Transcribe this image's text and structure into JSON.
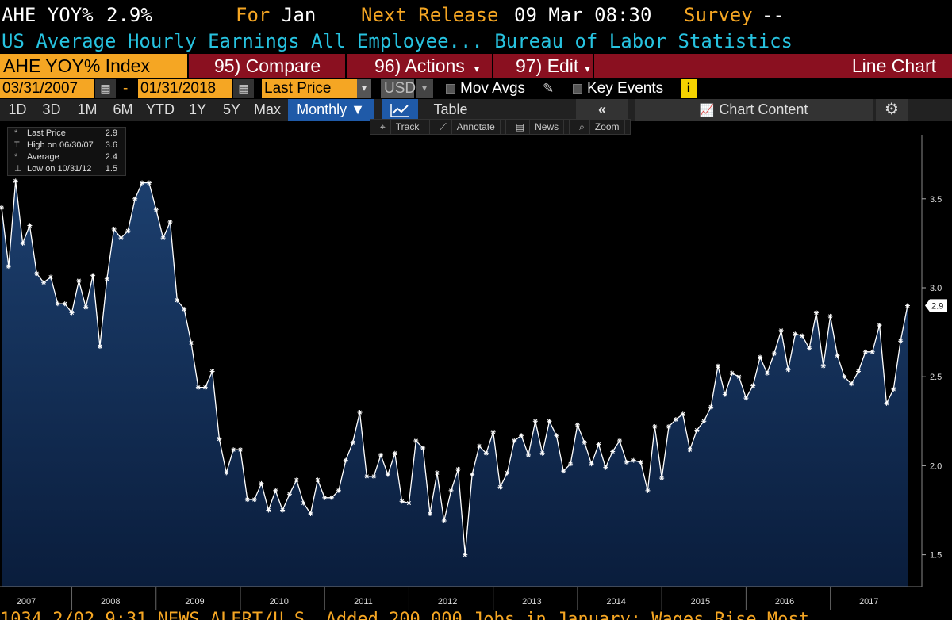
{
  "header": {
    "ticker": "AHE YOY%",
    "value": "2.9%",
    "for_label": "For",
    "for_value": "Jan",
    "next_release_label": "Next Release",
    "next_release_value": "09 Mar 08:30",
    "survey_label": "Survey",
    "survey_value": "--",
    "description": "US Average Hourly Earnings All Employee... Bureau of Labor Statistics"
  },
  "menu": {
    "index_name": "AHE YOY% Index",
    "compare": "95) Compare",
    "actions": "96) Actions",
    "edit": "97) Edit",
    "chart_type": "Line Chart"
  },
  "controls": {
    "start_date": "03/31/2007",
    "dash": "-",
    "end_date": "01/31/2018",
    "field": "Last Price",
    "currency": "USD",
    "mov_avgs": "Mov Avgs",
    "key_events": "Key Events",
    "info": "i"
  },
  "periods": [
    "1D",
    "3D",
    "1M",
    "6M",
    "YTD",
    "1Y",
    "5Y",
    "Max"
  ],
  "frequency": "Monthly ▼",
  "table_label": "Table",
  "collapse_label": "«",
  "chart_content_label": "Chart Content",
  "tools": [
    "Track",
    "Annotate",
    "News",
    "Zoom"
  ],
  "legend": [
    {
      "symbol": "*",
      "label": "Last Price",
      "value": "2.9"
    },
    {
      "symbol": "T",
      "label": "High on 06/30/07",
      "value": "3.6"
    },
    {
      "symbol": "*",
      "label": "Average",
      "value": "2.4"
    },
    {
      "symbol": "⊥",
      "label": "Low on 10/31/12",
      "value": "1.5"
    }
  ],
  "colors": {
    "accent_orange": "#f5a623",
    "menu_red": "#8a1020",
    "title_cyan": "#27c3e0",
    "area_fill": "#0e2a4f",
    "line": "#ffffff"
  },
  "chart_data": {
    "type": "area",
    "series": [
      {
        "name": "Last Price",
        "start": "2007-03",
        "frequency": "monthly",
        "values": [
          3.45,
          3.12,
          3.6,
          3.25,
          3.35,
          3.08,
          3.03,
          3.06,
          2.91,
          2.91,
          2.86,
          3.04,
          2.89,
          3.07,
          2.67,
          3.05,
          3.33,
          3.28,
          3.32,
          3.5,
          3.59,
          3.59,
          3.44,
          3.28,
          3.37,
          2.93,
          2.88,
          2.69,
          2.44,
          2.44,
          2.53,
          2.15,
          1.96,
          2.09,
          2.09,
          1.81,
          1.81,
          1.9,
          1.75,
          1.86,
          1.75,
          1.84,
          1.92,
          1.79,
          1.73,
          1.92,
          1.82,
          1.82,
          1.86,
          2.03,
          2.13,
          2.3,
          1.94,
          1.94,
          2.06,
          1.95,
          2.07,
          1.8,
          1.79,
          2.14,
          2.1,
          1.73,
          1.96,
          1.69,
          1.86,
          1.98,
          1.5,
          1.95,
          2.11,
          2.07,
          2.19,
          1.88,
          1.96,
          2.14,
          2.17,
          2.06,
          2.25,
          2.07,
          2.25,
          2.17,
          1.97,
          2.01,
          2.23,
          2.13,
          2.01,
          2.12,
          1.99,
          2.08,
          2.14,
          2.02,
          2.03,
          2.02,
          1.86,
          2.22,
          1.93,
          2.22,
          2.26,
          2.29,
          2.09,
          2.2,
          2.25,
          2.33,
          2.56,
          2.4,
          2.52,
          2.5,
          2.38,
          2.45,
          2.61,
          2.52,
          2.63,
          2.76,
          2.54,
          2.74,
          2.73,
          2.66,
          2.86,
          2.56,
          2.84,
          2.62,
          2.5,
          2.46,
          2.53,
          2.64,
          2.64,
          2.79,
          2.35,
          2.43,
          2.7,
          2.9
        ]
      }
    ],
    "x_tick_labels": [
      "2007",
      "2008",
      "2009",
      "2010",
      "2011",
      "2012",
      "2013",
      "2014",
      "2015",
      "2016",
      "2017"
    ],
    "y_ticks": [
      1.5,
      2.0,
      2.5,
      3.0,
      3.5
    ],
    "ylim": [
      1.32,
      3.86
    ],
    "last_value_label": "2.9",
    "grid": false
  },
  "bottom_ticker": "1034  2/02  9:31  NEWS ALERT/U.S. Added 200,000 Jobs in January; Wages Rise Most"
}
